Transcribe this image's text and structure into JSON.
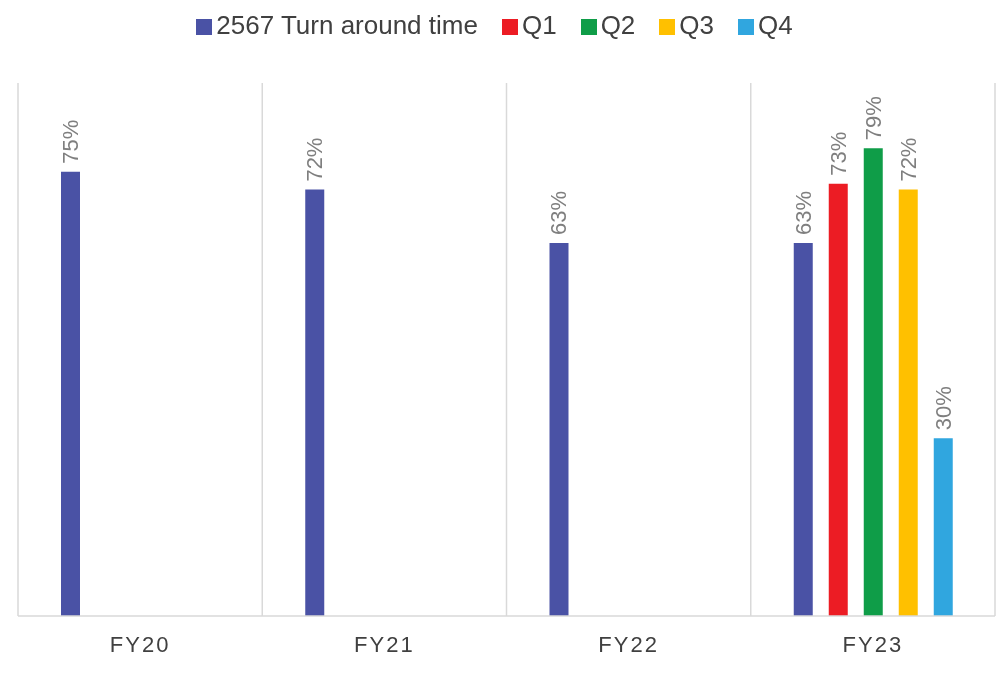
{
  "chart_data": {
    "type": "bar",
    "categories": [
      "FY20",
      "FY21",
      "FY22",
      "FY23"
    ],
    "series": [
      {
        "name": "2567 Turn around time",
        "color": "#4a52a5",
        "values": [
          75,
          72,
          63,
          63
        ],
        "value_labels": [
          "75%",
          "72%",
          "63%",
          "63%"
        ]
      },
      {
        "name": "Q1",
        "color": "#ec1c24",
        "values": [
          null,
          null,
          null,
          73
        ],
        "value_labels": [
          null,
          null,
          null,
          "73%"
        ]
      },
      {
        "name": "Q2",
        "color": "#0f9d48",
        "values": [
          null,
          null,
          null,
          79
        ],
        "value_labels": [
          null,
          null,
          null,
          "79%"
        ]
      },
      {
        "name": "Q3",
        "color": "#ffc000",
        "values": [
          null,
          null,
          null,
          72
        ],
        "value_labels": [
          null,
          null,
          null,
          "72%"
        ]
      },
      {
        "name": "Q4",
        "color": "#30a6df",
        "values": [
          null,
          null,
          null,
          30
        ],
        "value_labels": [
          null,
          null,
          null,
          "30%"
        ]
      }
    ],
    "ylim": [
      0,
      90
    ],
    "grid": "x",
    "legend": "top",
    "tick_labels": "x"
  }
}
